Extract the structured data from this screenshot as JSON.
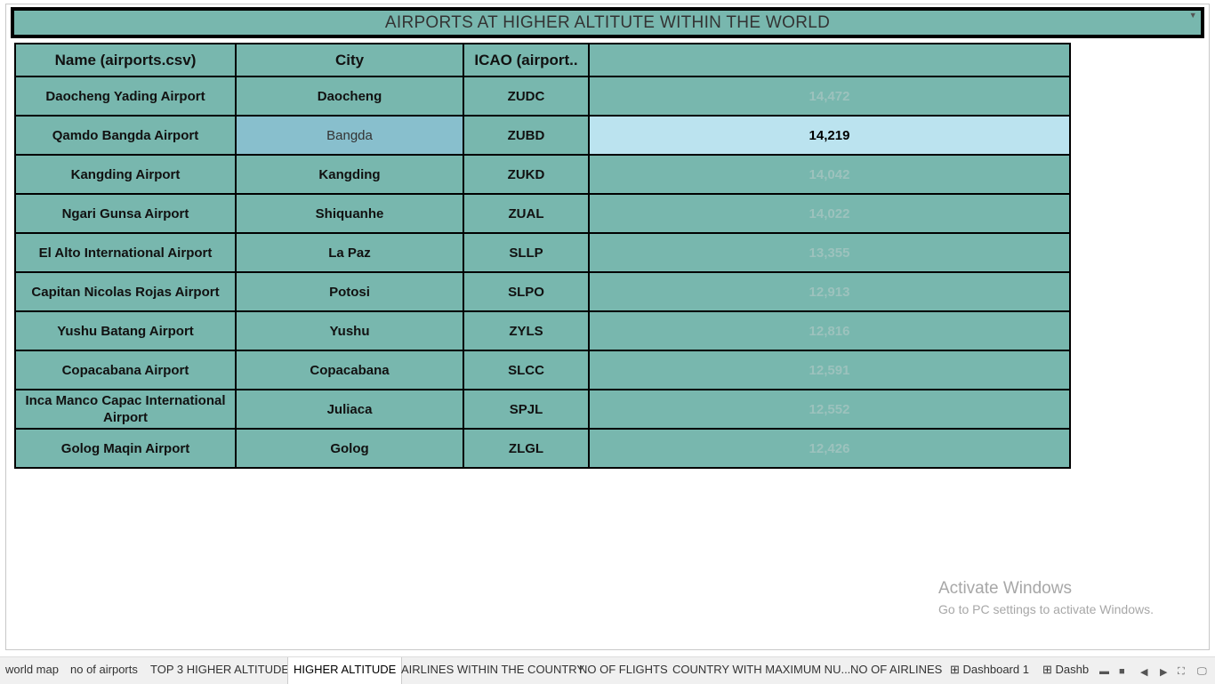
{
  "header": {
    "title": "AIRPORTS AT HIGHER ALTITUTE WITHIN THE WORLD"
  },
  "table": {
    "columns": [
      "Name (airports.csv)",
      "City",
      "ICAO (airport.."
    ],
    "rows": [
      [
        "Daocheng Yading Airport",
        "Daocheng",
        "ZUDC",
        "14,472"
      ],
      [
        "Qamdo Bangda Airport",
        "Bangda",
        "ZUBD",
        "14,219"
      ],
      [
        "Kangding Airport",
        "Kangding",
        "ZUKD",
        "14,042"
      ],
      [
        "Ngari Gunsa Airport",
        "Shiquanhe",
        "ZUAL",
        "14,022"
      ],
      [
        "El Alto International Airport",
        "La Paz",
        "SLLP",
        "13,355"
      ],
      [
        "Capitan Nicolas Rojas Airport",
        "Potosi",
        "SLPO",
        "12,913"
      ],
      [
        "Yushu Batang Airport",
        "Yushu",
        "ZYLS",
        "12,816"
      ],
      [
        "Copacabana Airport",
        "Copacabana",
        "SLCC",
        "12,591"
      ],
      [
        "Inca Manco Capac International Airport",
        "Juliaca",
        "SPJL",
        "12,552"
      ],
      [
        "Golog Maqin Airport",
        "Golog",
        "ZLGL",
        "12,426"
      ]
    ]
  },
  "watermark": {
    "title": "Activate Windows",
    "subtitle": "Go to PC settings to activate Windows."
  },
  "tabs": [
    "world map",
    "no of airports",
    "TOP 3 HIGHER ALTITUDE",
    "HIGHER ALTITUDE",
    "AIRLINES WITHIN THE COUNTRY",
    "NO OF FLIGHTS",
    "COUNTRY WITH MAXIMUM NU...",
    "NO OF AIRLINES",
    "Dashboard 1",
    "Dashb"
  ]
}
